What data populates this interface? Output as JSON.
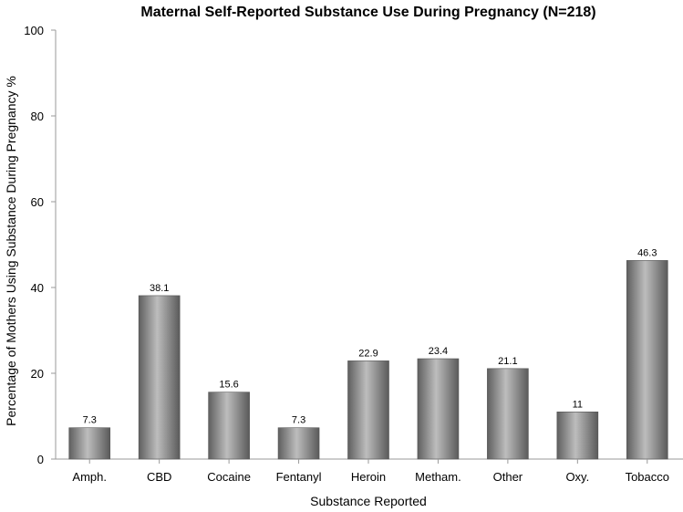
{
  "chart_data": {
    "type": "bar",
    "title": "Maternal Self-Reported Substance Use During Pregnancy (N=218)",
    "xlabel": "Substance Reported",
    "ylabel": "Percentage of Mothers Using Substance During Pregnancy %",
    "categories": [
      "Amph.",
      "CBD",
      "Cocaine",
      "Fentanyl",
      "Heroin",
      "Metham.",
      "Other",
      "Oxy.",
      "Tobacco"
    ],
    "values": [
      7.3,
      38.1,
      15.6,
      7.3,
      22.9,
      23.4,
      21.1,
      11,
      46.3
    ],
    "value_labels": [
      "7.3",
      "38.1",
      "15.6",
      "7.3",
      "22.9",
      "23.4",
      "21.1",
      "11",
      "46.3"
    ],
    "ylim": [
      0,
      100
    ],
    "yticks": [
      "0",
      "20",
      "40",
      "60",
      "80",
      "100"
    ],
    "grid": false,
    "legend": "none",
    "colors": {
      "bar_mid": "#bdbdbd",
      "bar_edge": "#5a5a5a",
      "axis": "#9a9a9a"
    }
  }
}
